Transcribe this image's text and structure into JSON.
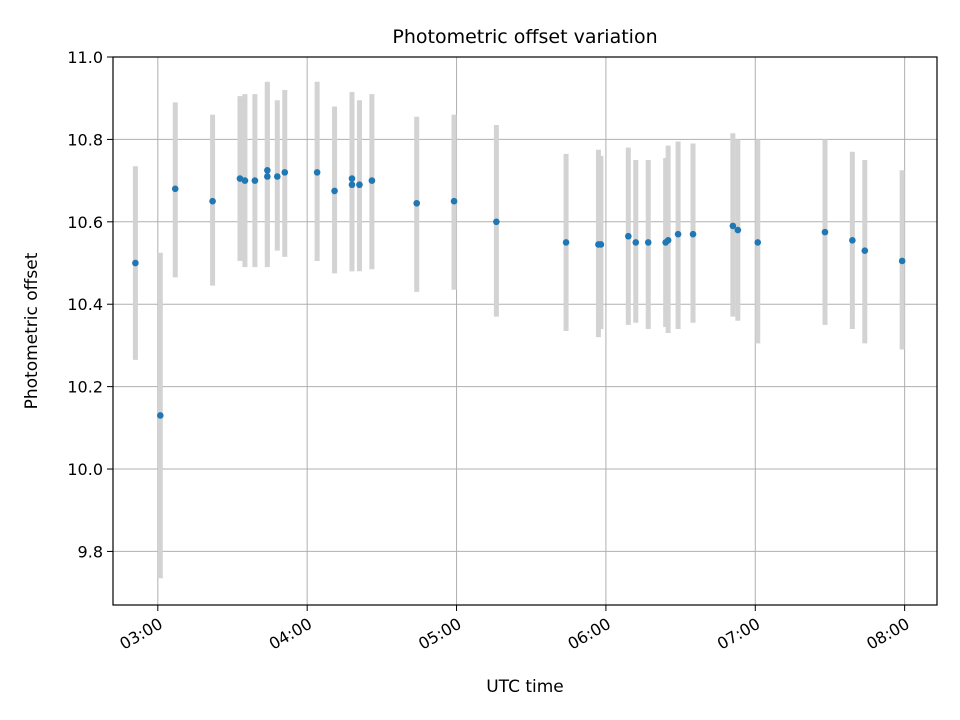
{
  "chart_data": {
    "type": "scatter",
    "title": "Photometric offset variation",
    "xlabel": "UTC time",
    "ylabel": "Photometric offset",
    "x_ticks": [
      "03:00",
      "04:00",
      "05:00",
      "06:00",
      "07:00",
      "08:00"
    ],
    "y_ticks": [
      "9.8",
      "10.0",
      "10.2",
      "10.4",
      "10.6",
      "10.8",
      "11.0"
    ],
    "xlim": [
      "02:42",
      "08:13"
    ],
    "ylim": [
      9.67,
      11.0
    ],
    "grid": true,
    "colors": {
      "points": "#1f77b4",
      "error_bars": "#d3d3d3",
      "grid": "#b0b0b0"
    },
    "series": [
      {
        "x": [
          "02:51",
          "03:01",
          "03:07",
          "03:22",
          "03:33",
          "03:35",
          "03:39",
          "03:44",
          "03:44",
          "03:48",
          "03:51",
          "04:04",
          "04:11",
          "04:18",
          "04:18",
          "04:21",
          "04:26",
          "04:44",
          "04:59",
          "05:16",
          "05:44",
          "05:57",
          "05:58",
          "06:09",
          "06:12",
          "06:17",
          "06:24",
          "06:25",
          "06:29",
          "06:35",
          "06:51",
          "06:53",
          "07:01",
          "07:28",
          "07:39",
          "07:44",
          "07:59"
        ],
        "y": [
          10.5,
          10.13,
          10.68,
          10.65,
          10.705,
          10.7,
          10.7,
          10.725,
          10.71,
          10.71,
          10.72,
          10.72,
          10.675,
          10.705,
          10.69,
          10.69,
          10.7,
          10.645,
          10.65,
          10.6,
          10.55,
          10.545,
          10.545,
          10.565,
          10.55,
          10.55,
          10.55,
          10.555,
          10.57,
          10.57,
          10.59,
          10.58,
          10.55,
          10.575,
          10.555,
          10.53,
          10.505
        ],
        "err_low": [
          10.265,
          9.735,
          10.465,
          10.445,
          10.505,
          10.49,
          10.49,
          10.49,
          10.505,
          10.53,
          10.515,
          10.505,
          10.475,
          10.48,
          10.48,
          10.48,
          10.485,
          10.43,
          10.435,
          10.37,
          10.335,
          10.32,
          10.34,
          10.35,
          10.355,
          10.34,
          10.345,
          10.33,
          10.34,
          10.355,
          10.37,
          10.36,
          10.305,
          10.35,
          10.34,
          10.305,
          10.29
        ],
        "err_high": [
          10.735,
          10.525,
          10.89,
          10.86,
          10.905,
          10.91,
          10.91,
          10.94,
          10.935,
          10.895,
          10.92,
          10.94,
          10.88,
          10.915,
          10.91,
          10.895,
          10.91,
          10.855,
          10.86,
          10.835,
          10.765,
          10.775,
          10.76,
          10.78,
          10.75,
          10.75,
          10.755,
          10.785,
          10.795,
          10.79,
          10.815,
          10.8,
          10.8,
          10.8,
          10.77,
          10.75,
          10.725
        ]
      }
    ]
  }
}
